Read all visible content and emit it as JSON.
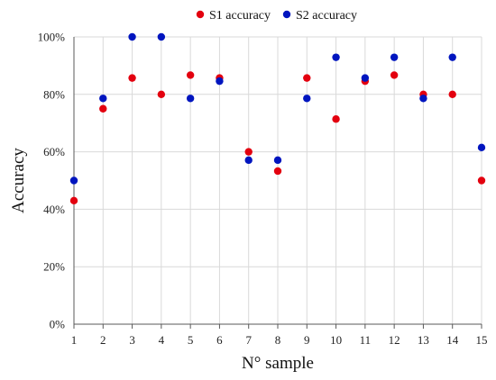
{
  "chart_data": {
    "type": "scatter",
    "x_categories": [
      "1",
      "2",
      "3",
      "4",
      "5",
      "6",
      "7",
      "8",
      "9",
      "10",
      "11",
      "12",
      "13",
      "14",
      "15"
    ],
    "xlabel": "N° sample",
    "ylabel": "Accuracy",
    "ylim": [
      0,
      1
    ],
    "y_ticks": [
      0,
      0.2,
      0.4,
      0.6,
      0.8,
      1.0
    ],
    "y_tick_labels": [
      "0%",
      "20%",
      "40%",
      "60%",
      "80%",
      "100%"
    ],
    "grid": true,
    "legend_position": "top-right",
    "series": [
      {
        "name": "S1 accuracy",
        "color": "#e3000f",
        "values": [
          0.43,
          0.75,
          0.857,
          0.8,
          0.867,
          0.857,
          0.6,
          0.533,
          0.857,
          0.714,
          0.846,
          0.867,
          0.8,
          0.8,
          0.5
        ]
      },
      {
        "name": "S2 accuracy",
        "color": "#0015bf",
        "values": [
          0.5,
          0.786,
          1.0,
          1.0,
          0.786,
          0.846,
          0.571,
          0.571,
          0.786,
          0.929,
          0.857,
          0.929,
          0.786,
          0.929,
          0.615
        ]
      }
    ]
  }
}
